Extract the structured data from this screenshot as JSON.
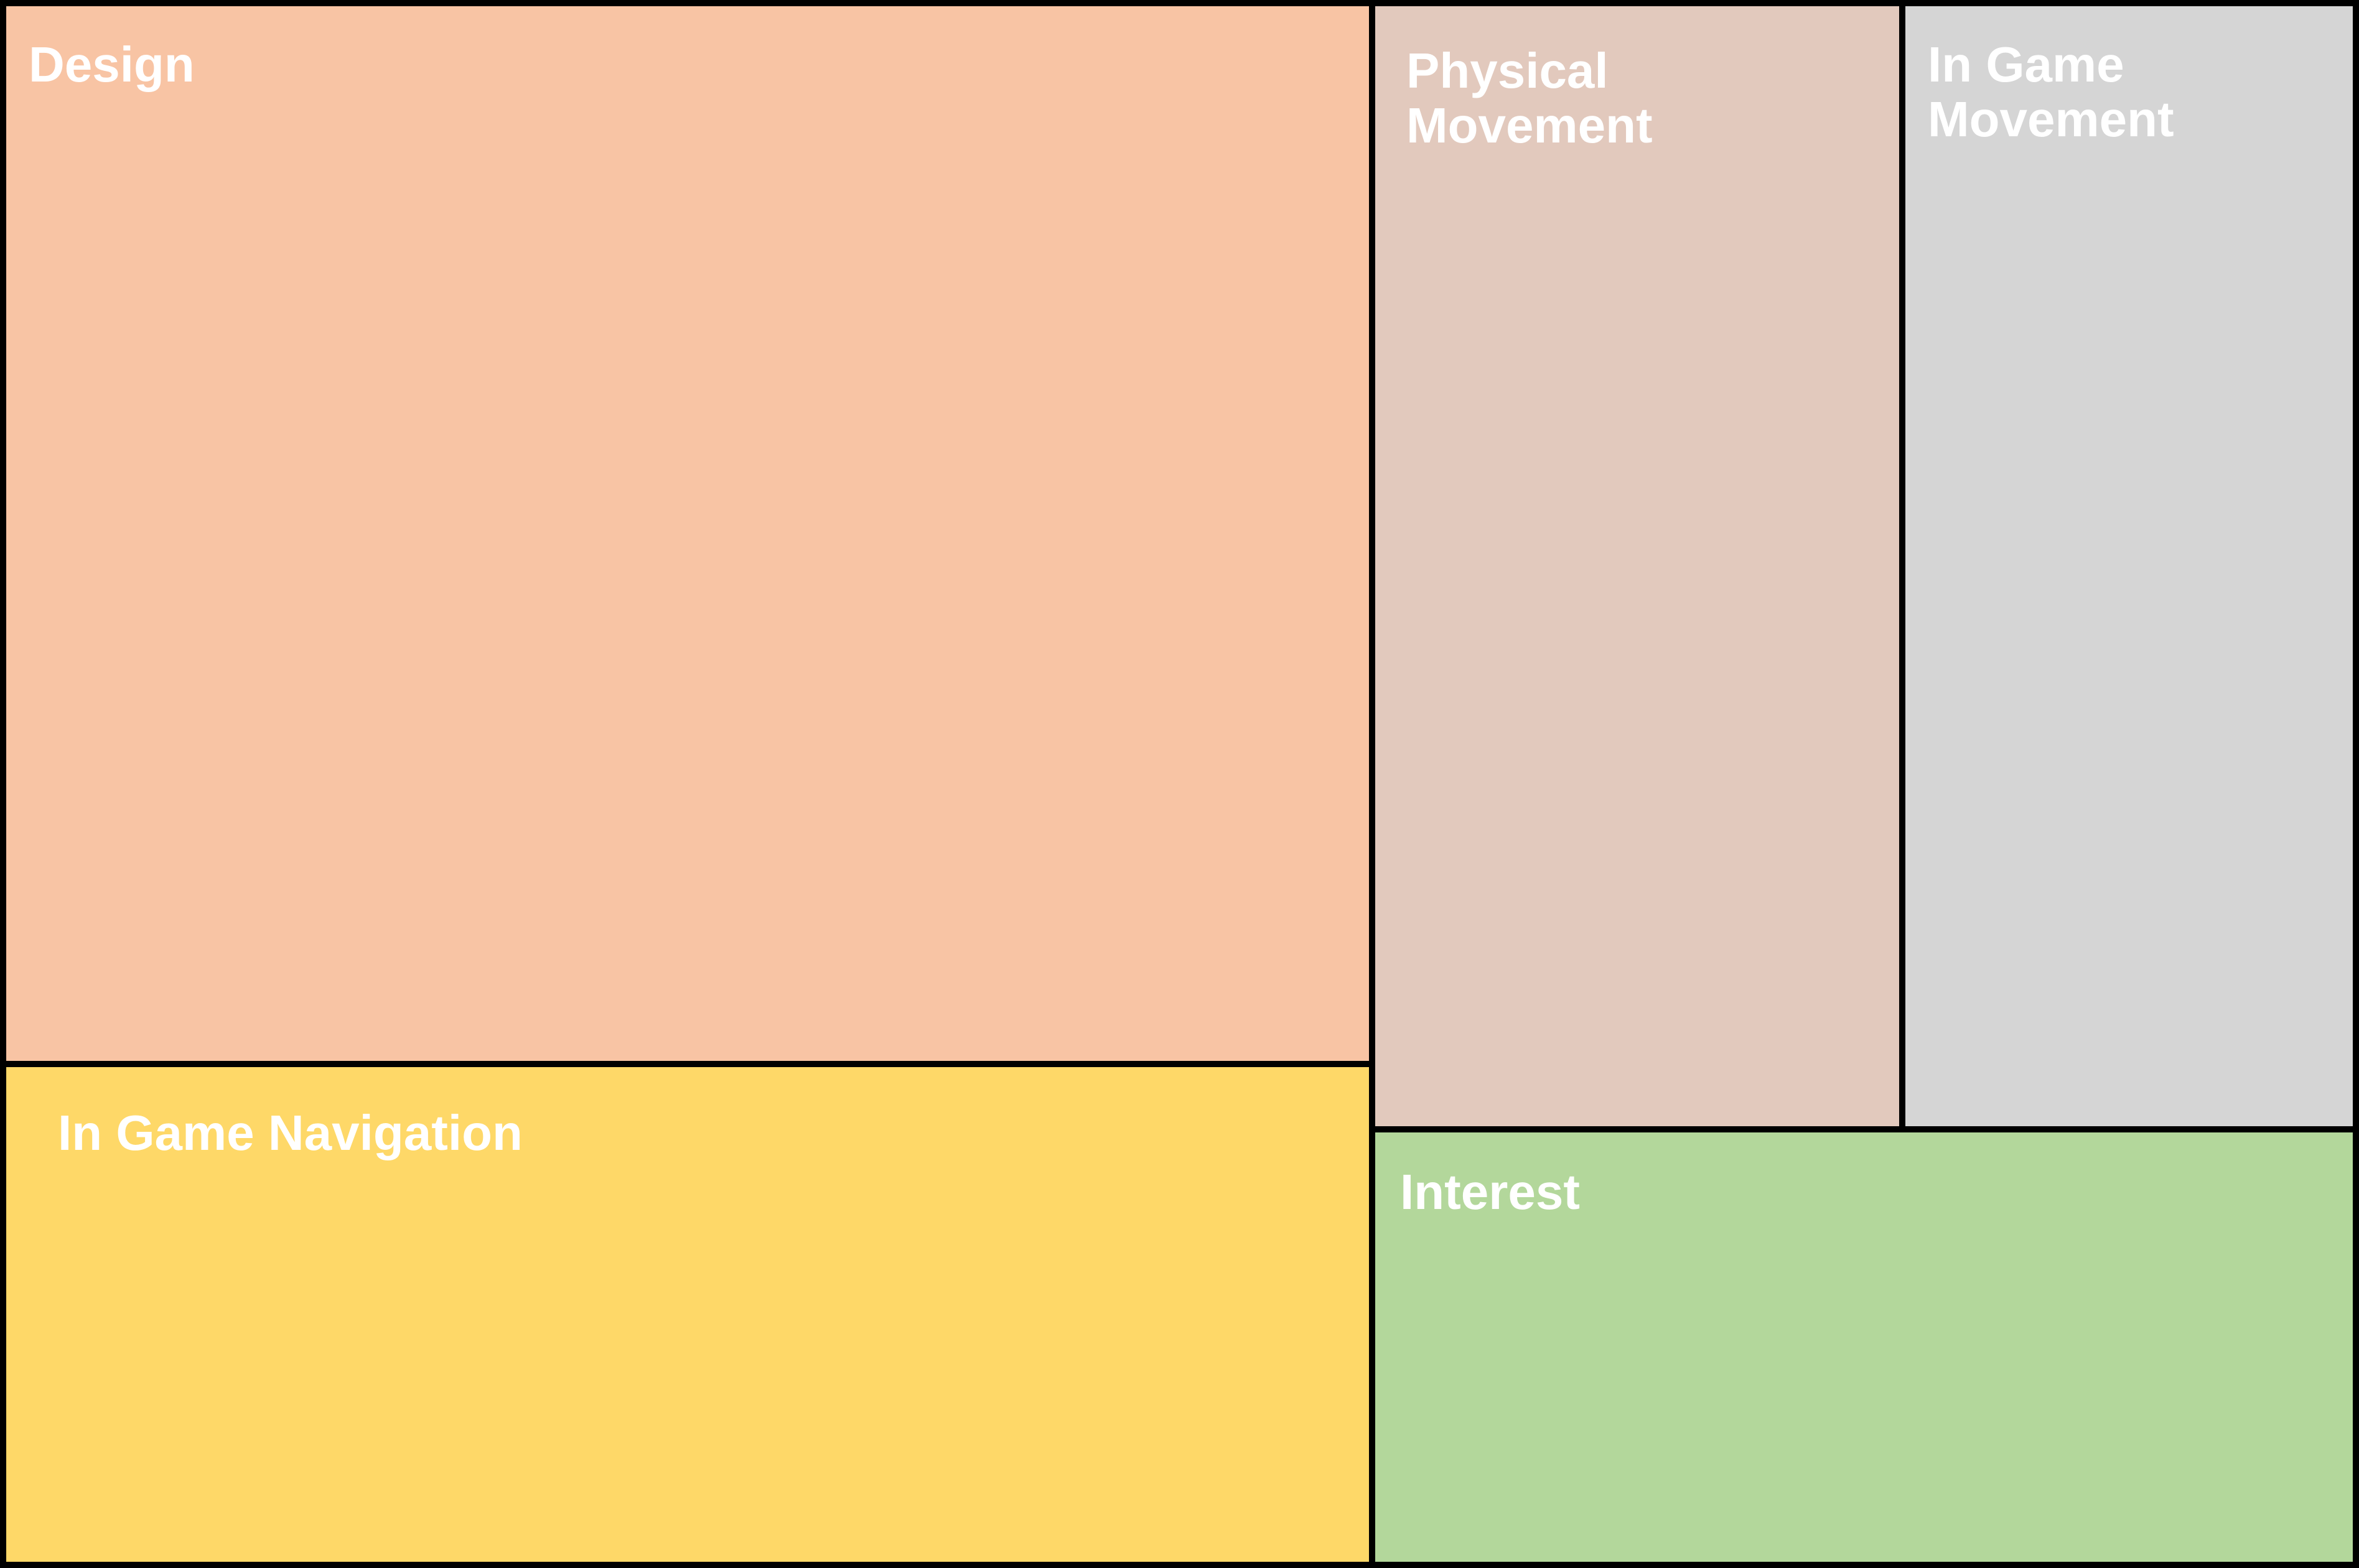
{
  "chart_data": {
    "type": "treemap",
    "title": "",
    "legend": "none",
    "items": [
      {
        "id": "design",
        "label": "Design",
        "value": 37.2,
        "color": "#F8C4A4"
      },
      {
        "id": "nav",
        "label": "In Game Navigation",
        "value": 17.5,
        "color": "#FED868"
      },
      {
        "id": "phys",
        "label": "Physical\nMovement",
        "value": 15.8,
        "color": "#E2C9BD"
      },
      {
        "id": "igm",
        "label": "In Game\nMovement",
        "value": 13.6,
        "color": "#D5D5D5"
      },
      {
        "id": "interest",
        "label": "Interest",
        "value": 15.9,
        "color": "#B3D79B"
      }
    ]
  }
}
